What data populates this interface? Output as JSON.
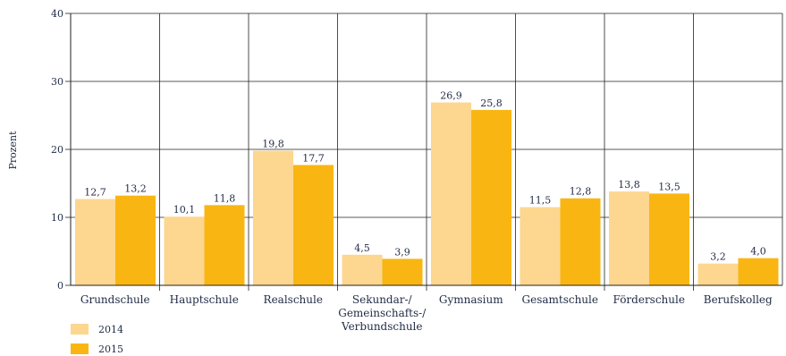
{
  "chart_data": {
    "type": "bar",
    "ylabel": "Prozent",
    "ylim": [
      0,
      40
    ],
    "yticks": [
      0,
      10,
      20,
      30,
      40
    ],
    "grid": true,
    "legend_position": "bottom-left",
    "categories": [
      [
        "Grundschule"
      ],
      [
        "Hauptschule"
      ],
      [
        "Realschule"
      ],
      [
        "Sekundar-/",
        "Gemeinschafts-/",
        "Verbundschule"
      ],
      [
        "Gymnasium"
      ],
      [
        "Gesamtschule"
      ],
      [
        "Förderschule"
      ],
      [
        "Berufskolleg"
      ]
    ],
    "series": [
      {
        "name": "2014",
        "color": "#fdd68f",
        "values": [
          12.7,
          10.1,
          19.8,
          4.5,
          26.9,
          11.5,
          13.8,
          3.2
        ],
        "labels": [
          "12,7",
          "10,1",
          "19,8",
          "4,5",
          "26,9",
          "11,5",
          "13,8",
          "3,2"
        ]
      },
      {
        "name": "2015",
        "color": "#f9b613",
        "values": [
          13.2,
          11.8,
          17.7,
          3.9,
          25.8,
          12.8,
          13.5,
          4.0
        ],
        "labels": [
          "13,2",
          "11,8",
          "17,7",
          "3,9",
          "25,8",
          "12,8",
          "13,5",
          "4,0"
        ]
      }
    ]
  }
}
